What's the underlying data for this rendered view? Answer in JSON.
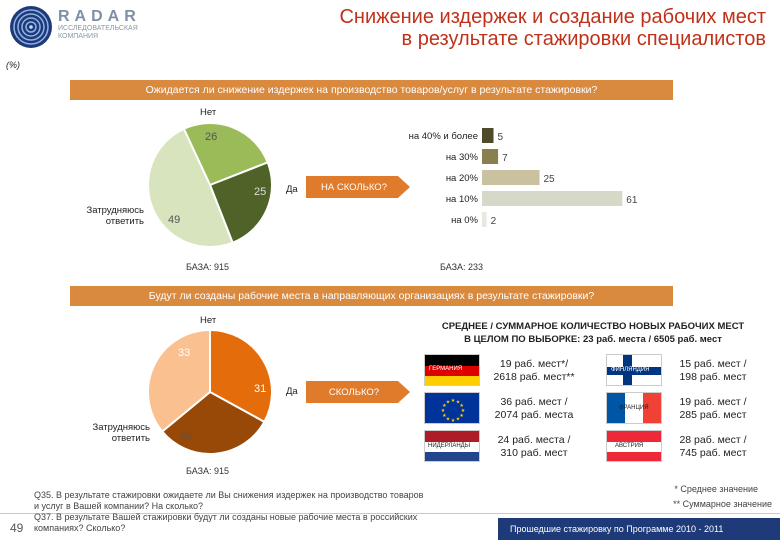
{
  "header": {
    "brand": "RADAR",
    "brand_sub": "ИССЛЕДОВАТЕЛЬСКАЯ КОМПАНИЯ",
    "title_line1": "Снижение издержек и создание рабочих мест",
    "title_line2": "в результате стажировки специалистов",
    "unit": "(%)"
  },
  "section1": {
    "question": "Ожидается ли снижение издержек на производство товаров/услуг в результате стажировки?",
    "pie_labels": {
      "no": "Нет",
      "yes": "Да",
      "unsure_line1": "Затрудняюсь",
      "unsure_line2": "ответить"
    },
    "pie_values": {
      "no": "26",
      "yes": "25",
      "unsure": "49"
    },
    "arrow": "НА СКОЛЬКО?",
    "base_left": "БАЗА: 915",
    "base_right": "БАЗА: 233"
  },
  "section2": {
    "question": "Будут ли созданы рабочие места в направляющих организациях в результате стажировки?",
    "pie_labels": {
      "no": "Нет",
      "yes": "Да",
      "unsure_line1": "Затрудняюсь",
      "unsure_line2": "ответить"
    },
    "pie_values": {
      "no": "33",
      "yes": "31",
      "unsure": "36"
    },
    "arrow": "СКОЛЬКО?",
    "base": "БАЗА: 915",
    "summary_line1": "СРЕДНЕЕ / СУММАРНОЕ КОЛИЧЕСТВО НОВЫХ РАБОЧИХ МЕСТ",
    "summary_line2": "В ЦЕЛОМ ПО ВЫБОРКЕ:  23 раб. места / 6505 раб. мест",
    "countries": [
      {
        "flag": "ГЕРМАНИЯ",
        "line1": "19 раб. мест*/",
        "line2": "2618 раб. мест**"
      },
      {
        "flag": "ФИНЛЯНДИЯ",
        "line1": "15 раб. мест /",
        "line2": "198 раб. мест"
      },
      {
        "flag": "",
        "line1": "36 раб. мест /",
        "line2": "2074 раб. места"
      },
      {
        "flag": "ФРАНЦИЯ",
        "line1": "19 раб. мест /",
        "line2": "285 раб. мест"
      },
      {
        "flag": "НИДЕРЛАНДЫ",
        "line1": "24 раб. места /",
        "line2": "310 раб. мест"
      },
      {
        "flag": "АВСТРИЯ",
        "line1": "28 раб. мест /",
        "line2": "745 раб. мест"
      }
    ]
  },
  "chart_data": [
    {
      "type": "pie",
      "labels": [
        "Нет",
        "Да",
        "Затрудняюсь ответить"
      ],
      "values": [
        26,
        25,
        49
      ],
      "colors": [
        "#9bbb59",
        "#4f6228",
        "#d7e4bd"
      ]
    },
    {
      "type": "bar",
      "orientation": "horizontal",
      "categories": [
        "на 40% и более",
        "на 30%",
        "на 20%",
        "на 10%",
        "на 0%"
      ],
      "values": [
        5,
        7,
        25,
        61,
        2
      ],
      "xlim": [
        0,
        100
      ],
      "colors": [
        "#4f4a2a",
        "#8a7f4f",
        "#c9c1a0",
        "#d6d8c8",
        "#e8e8e0"
      ]
    },
    {
      "type": "pie",
      "labels": [
        "Нет",
        "Да",
        "Затрудняюсь ответить"
      ],
      "values": [
        33,
        31,
        36
      ],
      "colors": [
        "#e46c0a",
        "#984807",
        "#fac090"
      ]
    }
  ],
  "footer": {
    "page": "49",
    "q1": "Q35. В результате стажировки ожидаете ли Вы снижения издержек на производство товаров",
    "q1b": "и услуг в Вашей компании? На сколько?",
    "q2": "Q37. В результате Вашей стажировки будут ли созданы новые рабочие места в российских",
    "q2b": "компаниях? Сколько?",
    "note1": "* Среднее значение",
    "note2": "** Суммарное значение",
    "program": "Прошедшие стажировку по Программе 2010 - 2011"
  }
}
